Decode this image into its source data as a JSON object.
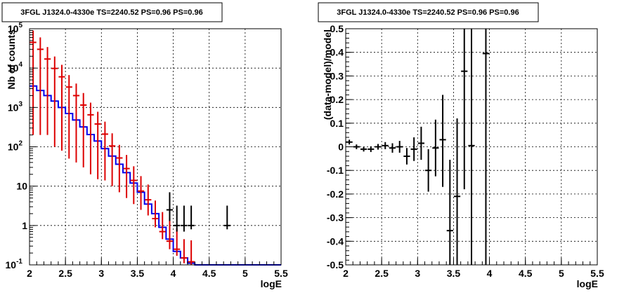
{
  "chart_data": [
    {
      "type": "line",
      "title": "3FGL J1324.0-4330e TS=2240.52 PS=0.96 PS=0.96",
      "xlabel": "logE",
      "ylabel": "Nb of counts",
      "xlim": [
        2,
        5.5
      ],
      "ylim": [
        0.1,
        100000
      ],
      "yscale": "log",
      "grid": true,
      "x_ticks": [
        "2",
        "2.5",
        "3",
        "3.5",
        "4",
        "4.5",
        "5",
        "5.5"
      ],
      "y_ticks": [
        "10^-1",
        "1",
        "10",
        "10^2",
        "10^3",
        "10^4",
        "10^5"
      ],
      "y_tick_values": [
        0.1,
        1,
        10,
        100,
        1000,
        10000,
        100000
      ],
      "series": [
        {
          "kind": "step",
          "color": "#0000ee",
          "bin_edges": [
            2.0,
            2.1,
            2.2,
            2.3,
            2.4,
            2.5,
            2.6,
            2.7,
            2.8,
            2.9,
            3.0,
            3.1,
            3.2,
            3.3,
            3.4,
            3.5,
            3.6,
            3.7,
            3.8,
            3.9,
            4.0,
            4.1,
            4.2,
            4.3,
            4.4,
            4.5,
            4.6,
            4.7,
            4.8,
            4.9,
            5.0,
            5.1,
            5.2,
            5.3,
            5.4,
            5.5
          ],
          "values": [
            3500,
            2700,
            2000,
            1450,
            1000,
            700,
            480,
            320,
            205,
            140,
            90,
            58,
            36,
            22,
            12,
            7,
            3.5,
            2,
            0.9,
            0.45,
            0.22,
            0.15,
            0.11,
            0.1,
            0.1,
            0.1,
            0.1,
            0.1,
            0.1,
            0.1,
            0.1,
            0.1,
            0.1,
            0.1,
            0.1
          ]
        },
        {
          "kind": "points",
          "color": "#dd0000",
          "x": [
            2.05,
            2.15,
            2.25,
            2.35,
            2.45,
            2.55,
            2.65,
            2.75,
            2.85,
            2.95,
            3.05,
            3.15,
            3.25,
            3.35,
            3.45,
            3.55,
            3.65,
            3.75,
            3.85,
            3.95,
            4.05,
            4.15,
            4.25
          ],
          "y": [
            45000,
            30000,
            17000,
            9800,
            6000,
            3300,
            2000,
            1150,
            650,
            380,
            210,
            105,
            52,
            28,
            14,
            7.5,
            4.5,
            1.5,
            0.7,
            0.4,
            0.25,
            0.15,
            0.12
          ],
          "err_low": [
            44800,
            29800,
            16800,
            9700,
            5920,
            3250,
            1960,
            1120,
            630,
            365,
            196,
            95,
            45,
            23,
            10.5,
            5,
            2.7,
            0.6,
            0.25,
            0.15,
            0.08,
            0.04,
            0.03
          ],
          "err_high": [
            45200,
            30200,
            17200,
            9900,
            6080,
            3360,
            2040,
            1180,
            670,
            395,
            225,
            115,
            60,
            34,
            18,
            10.5,
            6.5,
            2.8,
            1.5,
            1.2,
            0.6,
            0.3,
            0.3
          ]
        },
        {
          "kind": "points",
          "color": "#000000",
          "x": [
            3.95,
            4.05,
            4.15,
            4.25,
            4.75
          ],
          "y": [
            2.5,
            1.0,
            1.0,
            1.0,
            1.0
          ],
          "err_low": [
            1.2,
            0.3,
            0.3,
            0.2,
            0.2
          ],
          "err_high": [
            4.5,
            2.2,
            2.2,
            2.2,
            2.2
          ]
        }
      ]
    },
    {
      "type": "scatter",
      "title": "3FGL J1324.0-4330e TS=2240.52 PS=0.96 PS=0.96",
      "xlabel": "logE",
      "ylabel": "(data-model)/model",
      "xlim": [
        2,
        5.5
      ],
      "ylim": [
        -0.5,
        0.5
      ],
      "grid": true,
      "x_ticks": [
        "2",
        "2.5",
        "3",
        "3.5",
        "4",
        "4.5",
        "5",
        "5.5"
      ],
      "y_ticks": [
        "-0.5",
        "-0.4",
        "-0.3",
        "-0.2",
        "-0.1",
        "0",
        "0.1",
        "0.2",
        "0.3",
        "0.4",
        "0.5"
      ],
      "y_tick_values": [
        -0.5,
        -0.4,
        -0.3,
        -0.2,
        -0.1,
        0,
        0.1,
        0.2,
        0.3,
        0.4,
        0.5
      ],
      "series": [
        {
          "kind": "points",
          "color": "#000000",
          "x": [
            2.05,
            2.15,
            2.25,
            2.35,
            2.45,
            2.55,
            2.65,
            2.75,
            2.85,
            2.95,
            3.05,
            3.15,
            3.25,
            3.35,
            3.45,
            3.55,
            3.65,
            3.75,
            3.95
          ],
          "y": [
            0.02,
            0.0,
            -0.01,
            -0.01,
            0.0,
            0.005,
            -0.005,
            0.0,
            -0.04,
            -0.01,
            0.015,
            -0.1,
            -0.005,
            0.03,
            -0.355,
            -0.21,
            0.32,
            0.005,
            0.395
          ],
          "err_low": [
            0.01,
            0.01,
            0.01,
            0.012,
            0.012,
            0.015,
            0.02,
            0.025,
            0.035,
            0.05,
            0.07,
            0.09,
            0.12,
            0.2,
            0.3,
            0.33,
            0.5,
            0.6,
            0.9
          ],
          "err_high": [
            0.01,
            0.01,
            0.01,
            0.012,
            0.012,
            0.015,
            0.02,
            0.025,
            0.035,
            0.05,
            0.07,
            0.09,
            0.12,
            0.19,
            0.3,
            0.33,
            0.5,
            0.6,
            0.9
          ]
        }
      ]
    }
  ]
}
